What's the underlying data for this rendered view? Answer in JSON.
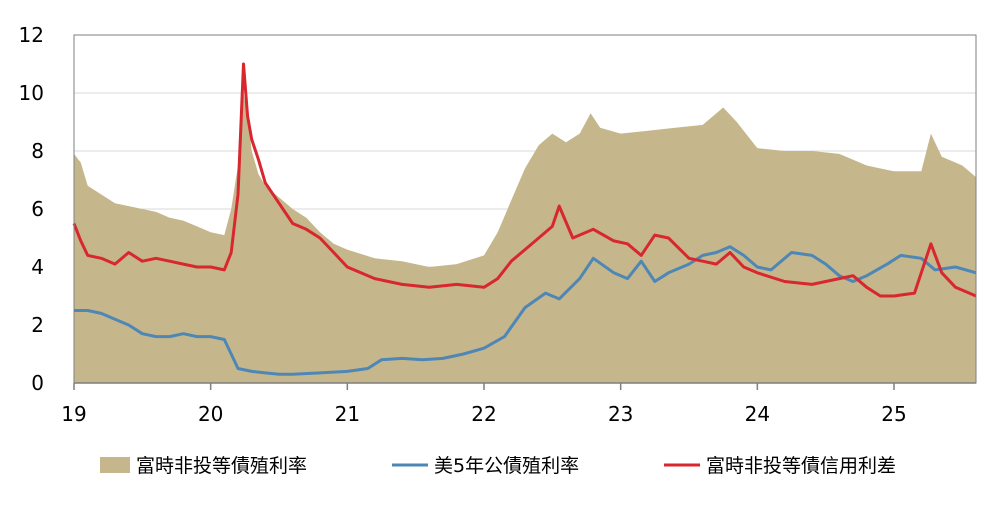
{
  "chart_data": {
    "type": "area",
    "title": "",
    "xlabel": "",
    "ylabel": "",
    "xlim": [
      2019.0,
      2025.6
    ],
    "ylim": [
      0,
      12
    ],
    "y_ticks": [
      "0",
      "2",
      "4",
      "6",
      "8",
      "10",
      "12"
    ],
    "y_tick_values": [
      0,
      2,
      4,
      6,
      8,
      10,
      12
    ],
    "x_ticks": [
      "19",
      "20",
      "21",
      "22",
      "23",
      "24",
      "25"
    ],
    "x_tick_values": [
      2019,
      2020,
      2021,
      2022,
      2023,
      2024,
      2025
    ],
    "grid": "horizontal",
    "legend_position": "bottom",
    "series": [
      {
        "name": "富時非投等債殖利率",
        "kind": "area",
        "color": "#c5b78b",
        "x": [
          2019.0,
          2019.05,
          2019.1,
          2019.2,
          2019.3,
          2019.4,
          2019.5,
          2019.6,
          2019.7,
          2019.8,
          2019.9,
          2020.0,
          2020.1,
          2020.15,
          2020.2,
          2020.24,
          2020.27,
          2020.3,
          2020.35,
          2020.4,
          2020.5,
          2020.6,
          2020.7,
          2020.8,
          2020.9,
          2021.0,
          2021.2,
          2021.4,
          2021.6,
          2021.8,
          2022.0,
          2022.1,
          2022.2,
          2022.3,
          2022.4,
          2022.5,
          2022.6,
          2022.7,
          2022.78,
          2022.85,
          2023.0,
          2023.2,
          2023.4,
          2023.6,
          2023.75,
          2023.85,
          2024.0,
          2024.2,
          2024.4,
          2024.6,
          2024.8,
          2025.0,
          2025.2,
          2025.27,
          2025.35,
          2025.5,
          2025.6
        ],
        "values": [
          7.9,
          7.6,
          6.8,
          6.5,
          6.2,
          6.1,
          6.0,
          5.9,
          5.7,
          5.6,
          5.4,
          5.2,
          5.1,
          6.0,
          7.5,
          10.0,
          9.2,
          8.0,
          7.2,
          6.8,
          6.4,
          6.0,
          5.7,
          5.2,
          4.8,
          4.6,
          4.3,
          4.2,
          4.0,
          4.1,
          4.4,
          5.2,
          6.3,
          7.4,
          8.2,
          8.6,
          8.3,
          8.6,
          9.3,
          8.8,
          8.6,
          8.7,
          8.8,
          8.9,
          9.5,
          9.0,
          8.1,
          8.0,
          8.0,
          7.9,
          7.5,
          7.3,
          7.3,
          8.6,
          7.8,
          7.5,
          7.1
        ]
      },
      {
        "name": "美5年公債殖利率",
        "kind": "line",
        "color": "#4e87b6",
        "x": [
          2019.0,
          2019.1,
          2019.2,
          2019.3,
          2019.4,
          2019.5,
          2019.6,
          2019.7,
          2019.8,
          2019.9,
          2020.0,
          2020.1,
          2020.15,
          2020.2,
          2020.3,
          2020.4,
          2020.5,
          2020.6,
          2020.8,
          2021.0,
          2021.15,
          2021.25,
          2021.4,
          2021.55,
          2021.7,
          2021.85,
          2022.0,
          2022.15,
          2022.3,
          2022.45,
          2022.55,
          2022.7,
          2022.8,
          2022.95,
          2023.05,
          2023.15,
          2023.25,
          2023.35,
          2023.5,
          2023.6,
          2023.7,
          2023.8,
          2023.9,
          2024.0,
          2024.1,
          2024.25,
          2024.4,
          2024.5,
          2024.6,
          2024.7,
          2024.8,
          2024.95,
          2025.05,
          2025.2,
          2025.3,
          2025.45,
          2025.6
        ],
        "values": [
          2.5,
          2.5,
          2.4,
          2.2,
          2.0,
          1.7,
          1.6,
          1.6,
          1.7,
          1.6,
          1.6,
          1.5,
          1.0,
          0.5,
          0.4,
          0.35,
          0.3,
          0.3,
          0.35,
          0.4,
          0.5,
          0.8,
          0.85,
          0.8,
          0.85,
          1.0,
          1.2,
          1.6,
          2.6,
          3.1,
          2.9,
          3.6,
          4.3,
          3.8,
          3.6,
          4.2,
          3.5,
          3.8,
          4.1,
          4.4,
          4.5,
          4.7,
          4.4,
          4.0,
          3.9,
          4.5,
          4.4,
          4.1,
          3.7,
          3.5,
          3.7,
          4.1,
          4.4,
          4.3,
          3.9,
          4.0,
          3.8
        ]
      },
      {
        "name": "富時非投等債信用利差",
        "kind": "line",
        "color": "#d8272e",
        "x": [
          2019.0,
          2019.05,
          2019.1,
          2019.2,
          2019.3,
          2019.4,
          2019.5,
          2019.6,
          2019.7,
          2019.8,
          2019.9,
          2020.0,
          2020.1,
          2020.15,
          2020.2,
          2020.24,
          2020.27,
          2020.3,
          2020.35,
          2020.4,
          2020.5,
          2020.6,
          2020.7,
          2020.8,
          2020.9,
          2021.0,
          2021.2,
          2021.4,
          2021.6,
          2021.8,
          2022.0,
          2022.1,
          2022.2,
          2022.3,
          2022.4,
          2022.5,
          2022.55,
          2022.65,
          2022.8,
          2022.95,
          2023.05,
          2023.15,
          2023.25,
          2023.35,
          2023.5,
          2023.6,
          2023.7,
          2023.8,
          2023.9,
          2024.0,
          2024.2,
          2024.4,
          2024.6,
          2024.7,
          2024.8,
          2024.9,
          2025.0,
          2025.15,
          2025.27,
          2025.35,
          2025.45,
          2025.6
        ],
        "values": [
          5.5,
          4.9,
          4.4,
          4.3,
          4.1,
          4.5,
          4.2,
          4.3,
          4.2,
          4.1,
          4.0,
          4.0,
          3.9,
          4.5,
          6.5,
          11.0,
          9.2,
          8.4,
          7.7,
          6.9,
          6.2,
          5.5,
          5.3,
          5.0,
          4.5,
          4.0,
          3.6,
          3.4,
          3.3,
          3.4,
          3.3,
          3.6,
          4.2,
          4.6,
          5.0,
          5.4,
          6.1,
          5.0,
          5.3,
          4.9,
          4.8,
          4.4,
          5.1,
          5.0,
          4.3,
          4.2,
          4.1,
          4.5,
          4.0,
          3.8,
          3.5,
          3.4,
          3.6,
          3.7,
          3.3,
          3.0,
          3.0,
          3.1,
          4.8,
          3.8,
          3.3,
          3.0
        ]
      }
    ]
  }
}
